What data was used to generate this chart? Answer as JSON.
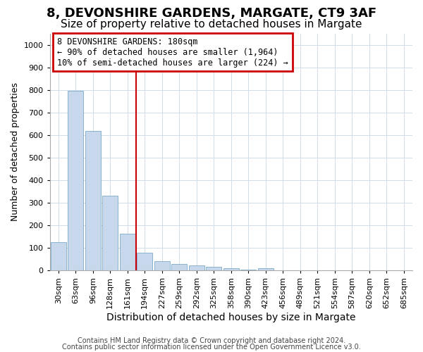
{
  "title1": "8, DEVONSHIRE GARDENS, MARGATE, CT9 3AF",
  "title2": "Size of property relative to detached houses in Margate",
  "xlabel": "Distribution of detached houses by size in Margate",
  "ylabel": "Number of detached properties",
  "bar_color": "#c8d8ec",
  "bar_edge_color": "#7aaac8",
  "categories": [
    "30sqm",
    "63sqm",
    "96sqm",
    "128sqm",
    "161sqm",
    "194sqm",
    "227sqm",
    "259sqm",
    "292sqm",
    "325sqm",
    "358sqm",
    "390sqm",
    "423sqm",
    "456sqm",
    "489sqm",
    "521sqm",
    "554sqm",
    "587sqm",
    "620sqm",
    "652sqm",
    "685sqm"
  ],
  "values": [
    125,
    795,
    618,
    330,
    163,
    78,
    40,
    29,
    22,
    15,
    8,
    3,
    8,
    0,
    0,
    0,
    0,
    0,
    0,
    0,
    0
  ],
  "vline_color": "#cc0000",
  "annotation_text": "8 DEVONSHIRE GARDENS: 180sqm\n← 90% of detached houses are smaller (1,964)\n10% of semi-detached houses are larger (224) →",
  "annotation_box_color": "#ffffff",
  "annotation_edge_color": "#cc0000",
  "ylim": [
    0,
    1050
  ],
  "yticks": [
    0,
    100,
    200,
    300,
    400,
    500,
    600,
    700,
    800,
    900,
    1000
  ],
  "background_color": "#ffffff",
  "grid_color": "#d0dce8",
  "footer1": "Contains HM Land Registry data © Crown copyright and database right 2024.",
  "footer2": "Contains public sector information licensed under the Open Government Licence v3.0.",
  "title1_fontsize": 13,
  "title2_fontsize": 11,
  "tick_fontsize": 8,
  "ylabel_fontsize": 9,
  "xlabel_fontsize": 10,
  "footer_fontsize": 7,
  "ann_fontsize": 8.5
}
